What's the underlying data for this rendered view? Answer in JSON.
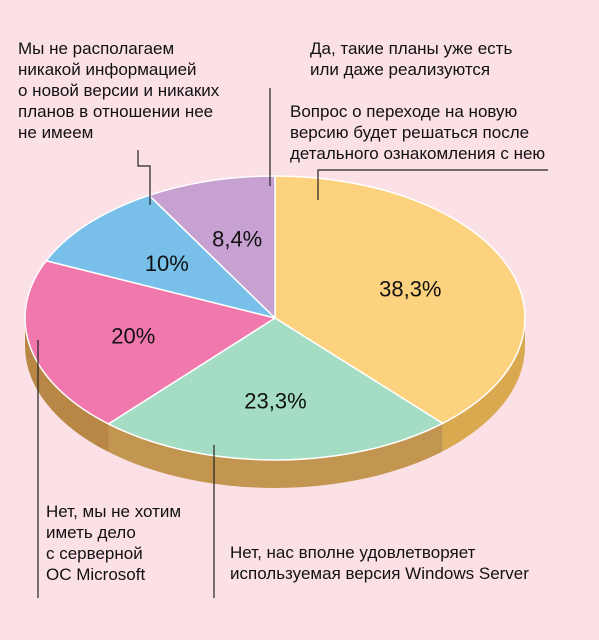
{
  "chart_data": {
    "type": "pie",
    "title": "",
    "slices": [
      {
        "label": "Вопрос о переходе на новую версию будет решаться после детального ознакомления с нею",
        "value": 38.3,
        "value_label": "38,3%",
        "color": "#fdd27e",
        "side_color": "#d9a94f"
      },
      {
        "label": "Нет, нас вполне удовлетворяет используемая версия Windows Server",
        "value": 23.3,
        "value_label": "23,3%",
        "color": "#a4dcc4",
        "side_color": "#c29550"
      },
      {
        "label": "Нет, мы не хотим иметь дело с серверной ОС Microsoft",
        "value": 20,
        "value_label": "20%",
        "color": "#f178ad",
        "side_color": "#b88745"
      },
      {
        "label": "Мы не располагаем никакой информацией о новой версии и никаких планов в отношении нее не имеем",
        "value": 10,
        "value_label": "10%",
        "color": "#78c0ea",
        "side_color": "#a87a3c"
      },
      {
        "label": "Да, такие планы уже есть или даже реализуются",
        "value": 8.4,
        "value_label": "8,4%",
        "color": "#c7a1d2",
        "side_color": "#a87a3c"
      }
    ]
  },
  "annotations": {
    "top_right": [
      "Да, такие планы уже есть",
      "или даже реализуются"
    ],
    "mid_right": [
      "Вопрос о переходе на новую",
      "версию будет решаться после",
      "детального ознакомления с нею"
    ],
    "top_left": [
      "Мы не располагаем",
      "никакой информацией",
      "о новой версии и никаких",
      "планов в отношении нее",
      "не имеем"
    ],
    "bottom_left": [
      "Нет, мы не хотим",
      "иметь дело",
      "с серверной",
      "ОС Microsoft"
    ],
    "bottom_right": [
      "Нет, нас вполне удовлетворяет",
      "используемая версия Windows Server"
    ]
  }
}
